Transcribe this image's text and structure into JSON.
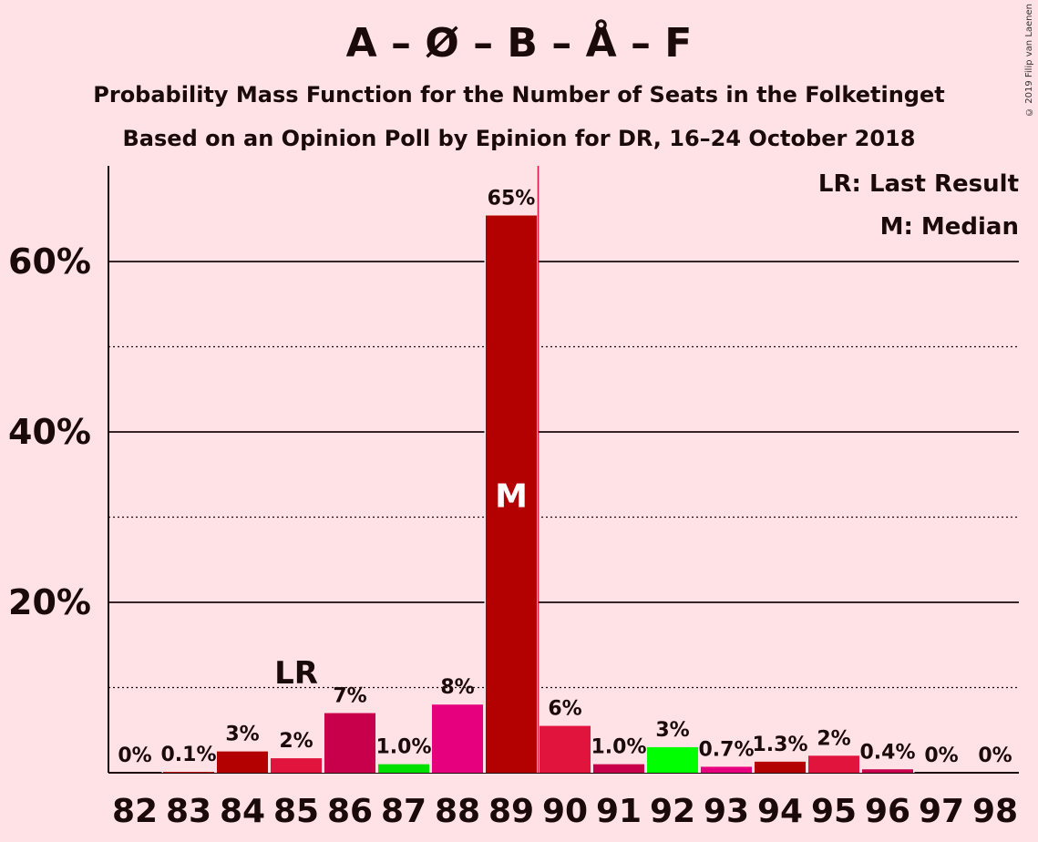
{
  "title": "A – Ø – B – Å – F",
  "subtitle_1": "Probability Mass Function for the Number of Seats in the Folketinget",
  "subtitle_2": "Based on an Opinion Poll by Epinion for DR, 16–24 October 2018",
  "copyright": "© 2019 Filip van Laenen",
  "legend": {
    "last_result": "LR: Last Result",
    "median": "M: Median",
    "placement": "top-right"
  },
  "chart_data": {
    "type": "bar",
    "categories": [
      82,
      83,
      84,
      85,
      86,
      87,
      88,
      89,
      90,
      91,
      92,
      93,
      94,
      95,
      96,
      97,
      98
    ],
    "values": [
      0,
      0.1,
      2.5,
      1.7,
      7.0,
      1.0,
      8.0,
      65.4,
      5.5,
      1.0,
      3.0,
      0.7,
      1.3,
      2.0,
      0.4,
      0,
      0
    ],
    "value_labels": [
      "0%",
      "0.1%",
      "3%",
      "2%",
      "7%",
      "1.0%",
      "8%",
      "65%",
      "6%",
      "1.0%",
      "3%",
      "0.7%",
      "1.3%",
      "2%",
      "0.4%",
      "0%",
      "0%"
    ],
    "bar_colors": [
      "#B30000",
      "#B30000",
      "#B30000",
      "#E0143C",
      "#C8004C",
      "#00E000",
      "#E6007E",
      "#B30000",
      "#E0143C",
      "#C8004C",
      "#00FF00",
      "#E6007E",
      "#B30000",
      "#E0143C",
      "#C8004C",
      "#00E000",
      "#E6007E"
    ],
    "ylim": [
      0,
      71
    ],
    "y_major_ticks": [
      20,
      40,
      60
    ],
    "y_major_labels": [
      "20%",
      "40%",
      "60%"
    ],
    "y_minor_ticks": [
      10,
      30,
      50
    ],
    "last_result_seat": 85,
    "last_result_marker": "LR",
    "median_seat": 89,
    "median_marker": "M",
    "median_line_color": "#E0143C",
    "grid": true
  }
}
